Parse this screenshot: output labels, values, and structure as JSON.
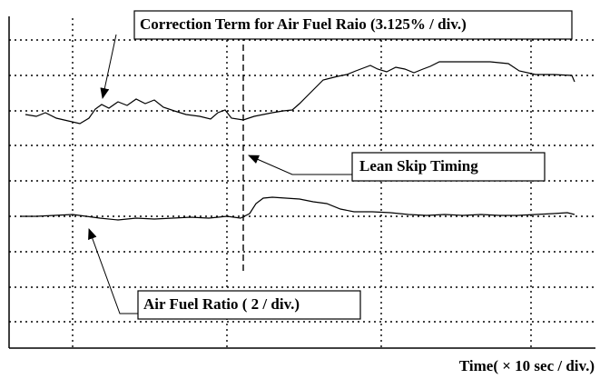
{
  "annotations": {
    "correction_term": "Correction Term for Air Fuel Raio (3.125% / div.)",
    "lean_skip": "Lean Skip Timing",
    "air_fuel_ratio": "Air Fuel Ratio ( 2 / div.)",
    "time_axis": "Time( × 10 sec / div.)"
  }
}
